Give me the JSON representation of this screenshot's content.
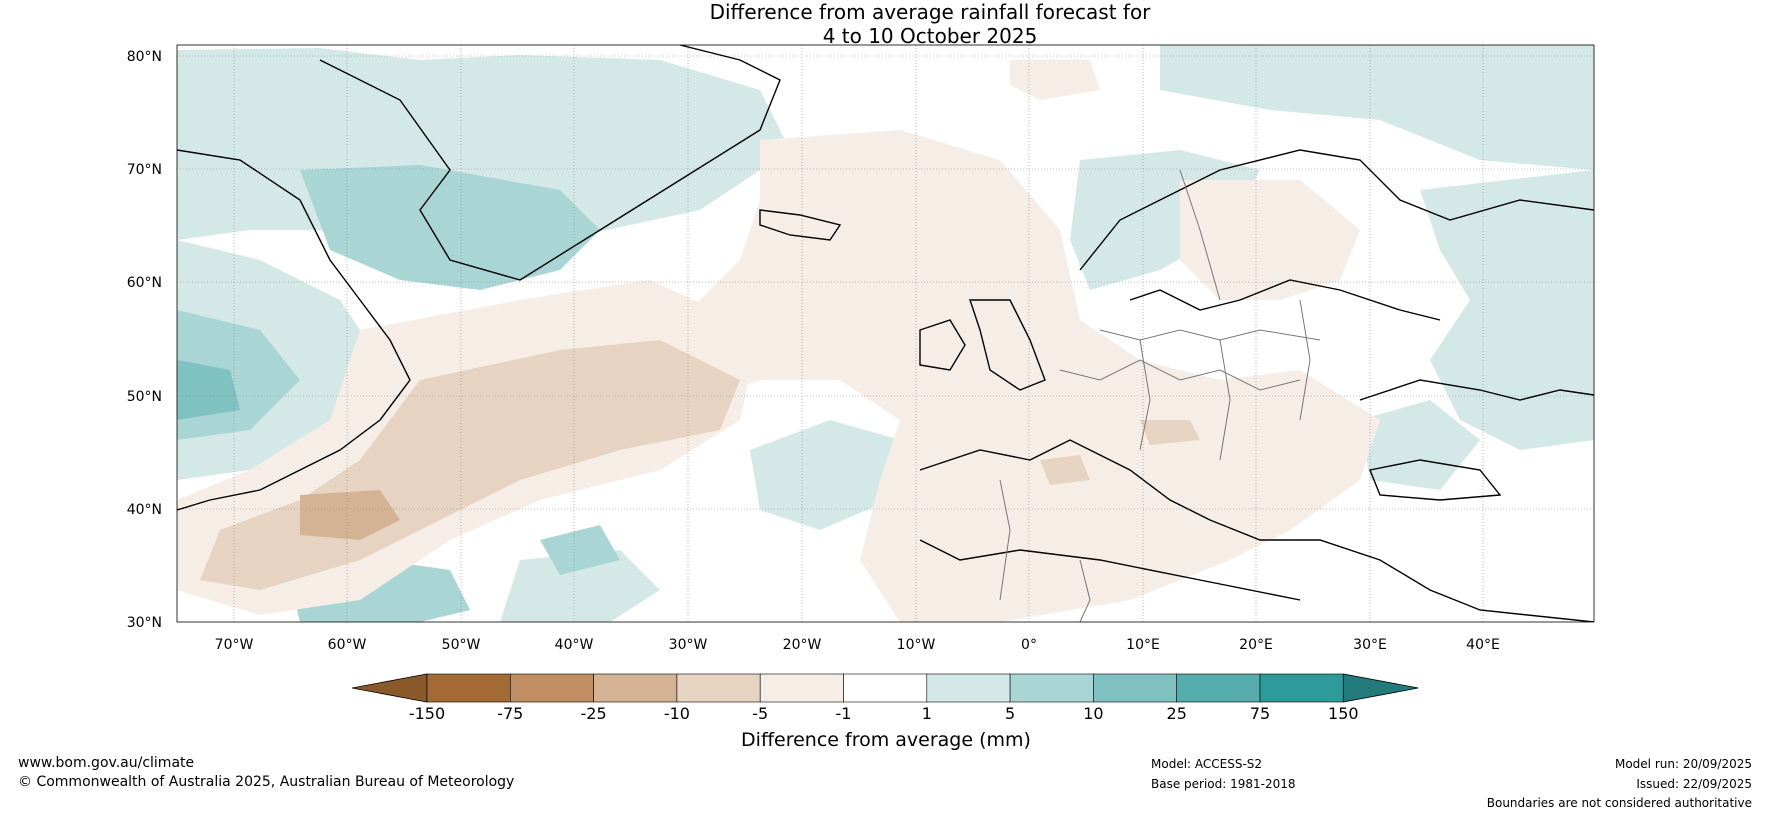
{
  "title": {
    "line1": "Difference from average rainfall forecast for",
    "line2": "4 to 10 October 2025"
  },
  "map": {
    "lat_labels": [
      "80°N",
      "70°N",
      "60°N",
      "50°N",
      "40°N",
      "30°N"
    ],
    "lon_labels": [
      "70°W",
      "60°W",
      "50°W",
      "40°W",
      "30°W",
      "20°W",
      "10°W",
      "0°",
      "10°E",
      "20°E",
      "30°E",
      "40°E"
    ]
  },
  "colorbar": {
    "ticks": [
      "-150",
      "-75",
      "-25",
      "-10",
      "-5",
      "-1",
      "1",
      "5",
      "10",
      "25",
      "75",
      "150"
    ],
    "colors": [
      "#a46a36",
      "#c08e62",
      "#d4b394",
      "#e6d3c1",
      "#f5ede6",
      "#ffffff",
      "#d4e8e7",
      "#a9d5d4",
      "#80c1c1",
      "#56adae",
      "#2e9a9a"
    ],
    "under_color": "#8b5a2b",
    "over_color": "#237a7a",
    "label": "Difference from average (mm)"
  },
  "footer": {
    "website": "www.bom.gov.au/climate",
    "copyright": "© Commonwealth of Australia 2025, Australian Bureau of Meteorology",
    "model": "Model: ACCESS-S2",
    "base_period": "Base period: 1981-2018",
    "model_run": "Model run: 20/09/2025",
    "issued": "Issued: 22/09/2025",
    "disclaimer": "Boundaries are not considered authoritative"
  }
}
